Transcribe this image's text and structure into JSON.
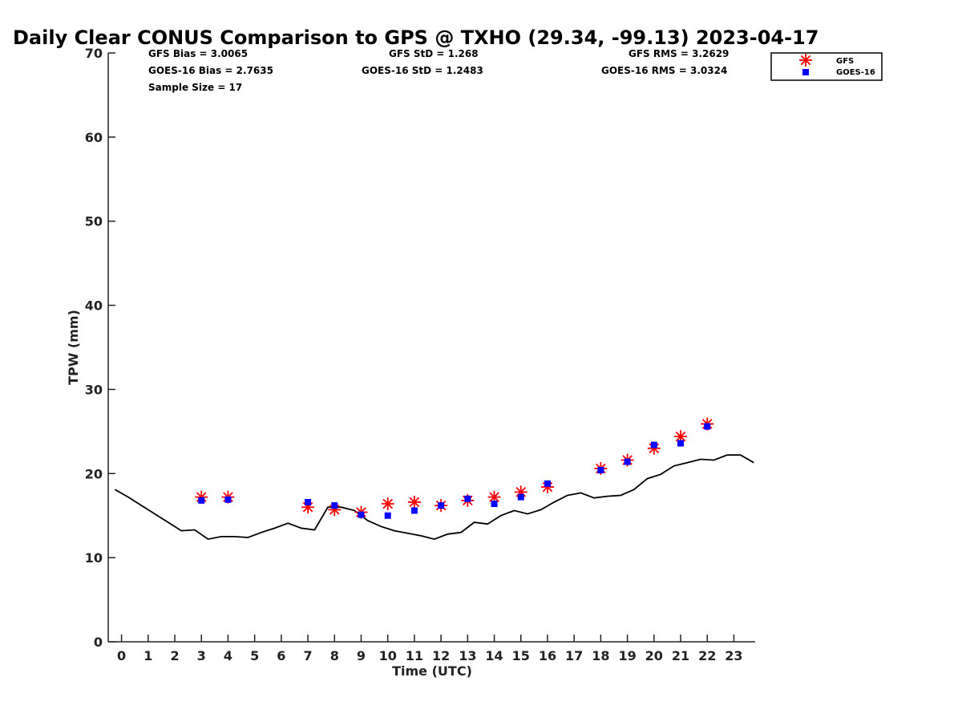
{
  "chart_data": {
    "type": "line",
    "title": "Daily Clear CONUS Comparison to GPS @ TXHO (29.34, -99.13) 2023-04-17",
    "xlabel": "Time (UTC)",
    "ylabel": "TPW (mm)",
    "xlim": [
      -0.5,
      23.8
    ],
    "ylim": [
      0,
      70
    ],
    "xticks": [
      0,
      1,
      2,
      3,
      4,
      5,
      6,
      7,
      8,
      9,
      10,
      11,
      12,
      13,
      14,
      15,
      16,
      17,
      18,
      19,
      20,
      21,
      22,
      23
    ],
    "yticks": [
      0,
      10,
      20,
      30,
      40,
      50,
      60,
      70
    ],
    "grid": false,
    "legend_position": "top-right",
    "stats": {
      "gfs_bias": "GFS Bias = 3.0065",
      "gfs_std": "GFS StD = 1.268",
      "gfs_rms": "GFS RMS = 3.2629",
      "goes_bias": "GOES-16 Bias = 2.7635",
      "goes_std": "GOES-16 StD = 1.2483",
      "goes_rms": "GOES-16 RMS = 3.0324",
      "sample_size": "Sample Size = 17"
    },
    "series": [
      {
        "name": "",
        "kind": "line",
        "color": "#000000",
        "x": [
          -0.25,
          0.25,
          0.75,
          1.25,
          1.75,
          2.25,
          2.75,
          3.25,
          3.75,
          4.25,
          4.75,
          5.25,
          5.75,
          6.25,
          6.75,
          7.25,
          7.75,
          8.25,
          8.75,
          9.25,
          9.75,
          10.25,
          10.75,
          11.25,
          11.75,
          12.25,
          12.75,
          13.25,
          13.75,
          14.25,
          14.75,
          15.25,
          15.75,
          16.25,
          16.75,
          17.25,
          17.75,
          18.25,
          18.75,
          19.25,
          19.75,
          20.25,
          20.75,
          21.25,
          21.75,
          22.25,
          22.75,
          23.25,
          23.75
        ],
        "y": [
          18.1,
          17.2,
          16.2,
          15.2,
          14.2,
          13.2,
          13.3,
          12.2,
          12.5,
          12.5,
          12.4,
          13.0,
          13.5,
          14.1,
          13.5,
          13.3,
          16.0,
          16.0,
          15.6,
          14.4,
          13.7,
          13.2,
          12.9,
          12.6,
          12.2,
          12.8,
          13.0,
          14.2,
          14.0,
          15.0,
          15.6,
          15.2,
          15.7,
          16.6,
          17.4,
          17.7,
          17.1,
          17.3,
          17.4,
          18.1,
          19.4,
          19.9,
          20.9,
          21.3,
          21.7,
          21.6,
          22.2,
          22.2,
          21.3
        ]
      },
      {
        "name": "GFS",
        "kind": "marker-asterisk",
        "color": "#ff0000",
        "x": [
          3,
          4,
          7,
          8,
          9,
          10,
          11,
          12,
          13,
          14,
          15,
          16,
          18,
          19,
          20,
          21,
          22
        ],
        "y": [
          17.2,
          17.2,
          16.0,
          15.7,
          15.4,
          16.4,
          16.6,
          16.2,
          16.8,
          17.2,
          17.8,
          18.4,
          20.6,
          21.6,
          23.0,
          24.4,
          25.9
        ]
      },
      {
        "name": "GOES-16",
        "kind": "marker-square",
        "color": "#0000ff",
        "x": [
          3,
          4,
          7,
          8,
          9,
          10,
          11,
          12,
          13,
          14,
          15,
          16,
          18,
          19,
          20,
          21,
          22
        ],
        "y": [
          16.8,
          16.9,
          16.6,
          16.2,
          15.1,
          15.0,
          15.6,
          16.2,
          17.0,
          16.4,
          17.2,
          18.8,
          20.4,
          21.4,
          23.4,
          23.6,
          25.6
        ]
      }
    ]
  }
}
